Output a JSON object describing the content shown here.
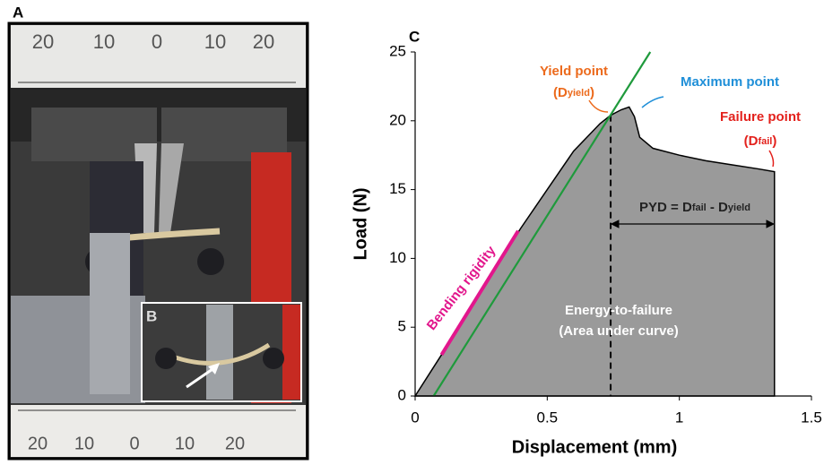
{
  "photo": {
    "label_a": "A",
    "label_b": "B",
    "top_ruler": [
      "20",
      "10",
      "0",
      "10",
      "20"
    ],
    "bottom_ruler": [
      "20",
      "10",
      "0",
      "10",
      "20"
    ]
  },
  "chart_data": {
    "type": "area",
    "panel_label": "C",
    "x_label": "Displacement (mm)",
    "y_label": "Load (N)",
    "xlim": [
      0,
      1.5
    ],
    "xticks": [
      0,
      0.5,
      1,
      1.5
    ],
    "ylim": [
      0,
      25
    ],
    "yticks": [
      0,
      5,
      10,
      15,
      20,
      25
    ],
    "series": [
      {
        "color": "#9a9a9a",
        "x": [
          0,
          0.05,
          0.1,
          0.2,
          0.3,
          0.4,
          0.5,
          0.6,
          0.7,
          0.74,
          0.78,
          0.81,
          0.83,
          0.85,
          0.9,
          1.0,
          1.1,
          1.2,
          1.3,
          1.36,
          1.36
        ],
        "values": [
          0,
          1.5,
          3,
          6.2,
          9.2,
          12.2,
          15,
          17.8,
          19.8,
          20.4,
          20.8,
          21,
          20.3,
          18.8,
          18,
          17.5,
          17.1,
          16.8,
          16.5,
          16.3,
          0
        ]
      },
      {
        "color": "#1f9a3c",
        "x": [
          0.07,
          0.89
        ],
        "values": [
          0,
          25
        ]
      }
    ],
    "bending_rigidity": {
      "color": "#e2168c",
      "x": [
        0.1,
        0.39
      ],
      "values": [
        3,
        12
      ],
      "label": "Bending rigidity"
    },
    "yield": {
      "x": 0.74,
      "y": 20.4,
      "color": "#ec6a1c",
      "label": "Yield point",
      "sub_label": [
        "(D",
        "yield",
        ")"
      ]
    },
    "maximum": {
      "color": "#1f8fd8",
      "label": "Maximum point"
    },
    "failure": {
      "x": 1.36,
      "color": "#e3211c",
      "label": "Failure point",
      "sub_label": [
        "(D",
        "fail",
        ")"
      ]
    },
    "pyd_label": [
      "PYD = D",
      "fail",
      " - D",
      "yield"
    ],
    "area_label": [
      "Energy-to-failure",
      "(Area under curve)"
    ]
  }
}
